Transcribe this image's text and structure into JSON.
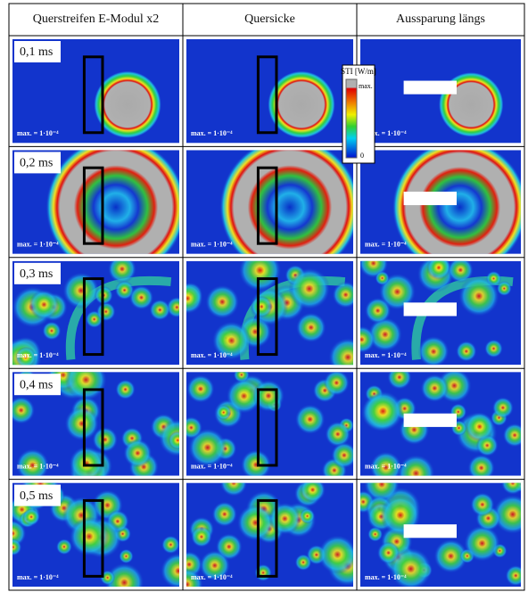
{
  "header": {
    "columns": [
      "Querstreifen E-Modul x2",
      "Quersicke",
      "Aussparung längs"
    ]
  },
  "rows": [
    {
      "time": "0,1 ms",
      "cells": [
        "max. = 1·10⁻⁴",
        "max. = 1·10⁻⁴",
        "max. = 1·10⁻⁴"
      ]
    },
    {
      "time": "0,2 ms",
      "cells": [
        "max. = 1·10⁻⁴",
        "max. = 1·10⁻⁴",
        "max. = 1·10⁻⁴"
      ]
    },
    {
      "time": "0,3 ms",
      "cells": [
        "max. = 1·10⁻⁴",
        "max. = 1·10⁻⁴",
        "max. = 1·10⁻⁴"
      ]
    },
    {
      "time": "0,4 ms",
      "cells": [
        "max. = 1·10⁻⁴",
        "max. = 1·10⁻⁴",
        "max. = 1·10⁻⁴"
      ]
    },
    {
      "time": "0,5 ms",
      "cells": [
        "max. = 1·10⁻⁴",
        "max. = 1·10⁻⁴",
        "max. = 1·10⁻⁴"
      ]
    }
  ],
  "legend": {
    "title": "STI [W/m]",
    "max": "max.",
    "min": "0"
  }
}
